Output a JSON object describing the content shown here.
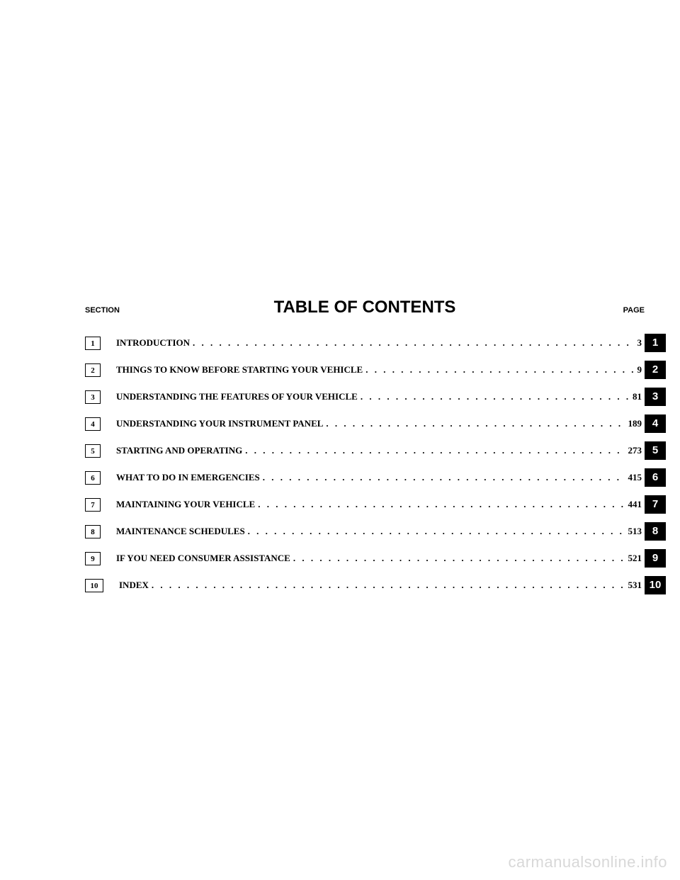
{
  "header": {
    "section_label": "SECTION",
    "title": "TABLE OF CONTENTS",
    "page_label": "PAGE"
  },
  "toc": [
    {
      "num": "1",
      "title": "INTRODUCTION",
      "page": "3"
    },
    {
      "num": "2",
      "title": "THINGS TO KNOW BEFORE STARTING YOUR VEHICLE",
      "page": "9"
    },
    {
      "num": "3",
      "title": "UNDERSTANDING THE FEATURES OF YOUR VEHICLE",
      "page": "81"
    },
    {
      "num": "4",
      "title": "UNDERSTANDING YOUR INSTRUMENT PANEL",
      "page": "189"
    },
    {
      "num": "5",
      "title": "STARTING AND OPERATING",
      "page": "273"
    },
    {
      "num": "6",
      "title": "WHAT TO DO IN EMERGENCIES",
      "page": "415"
    },
    {
      "num": "7",
      "title": "MAINTAINING YOUR VEHICLE",
      "page": "441"
    },
    {
      "num": "8",
      "title": "MAINTENANCE SCHEDULES",
      "page": "513"
    },
    {
      "num": "9",
      "title": "IF YOU NEED CONSUMER ASSISTANCE",
      "page": "521"
    },
    {
      "num": "10",
      "title": "INDEX",
      "page": "531"
    }
  ],
  "watermark": "carmanualsonline.info",
  "styling": {
    "page_bg": "#ffffff",
    "text_color": "#000000",
    "tab_bg": "#000000",
    "tab_fg": "#ffffff",
    "watermark_color": "#d8d8d8",
    "title_fontsize": 24,
    "label_fontsize": 11,
    "row_fontsize": 13
  }
}
